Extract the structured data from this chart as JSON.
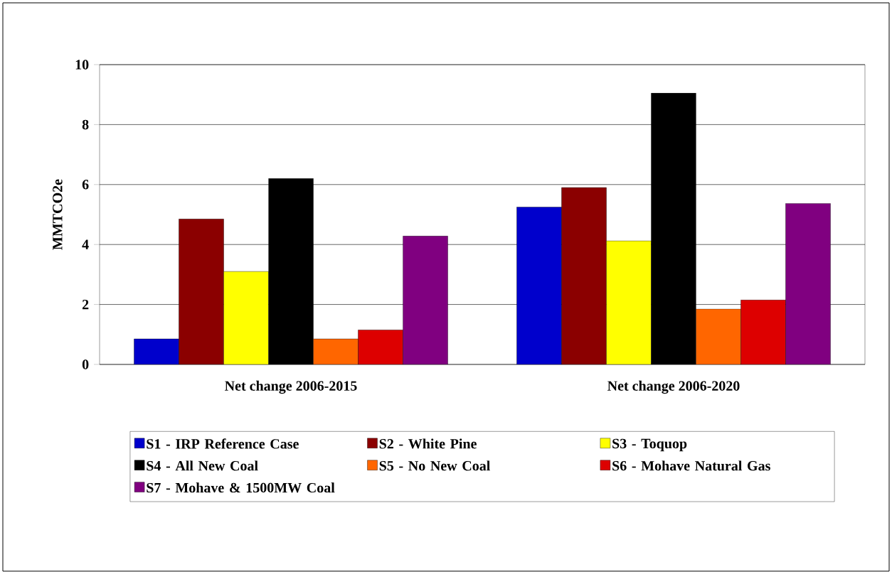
{
  "chart_data": {
    "type": "bar",
    "ylabel": "MMTCO2e",
    "categories": [
      "Net change 2006-2015",
      "Net change 2006-2020"
    ],
    "series": [
      {
        "name": "S1 - IRP Reference Case",
        "color": "#0000cc",
        "values": [
          0.85,
          5.25
        ]
      },
      {
        "name": "S2 - White Pine",
        "color": "#8b0000",
        "values": [
          4.85,
          5.9
        ]
      },
      {
        "name": "S3 - Toquop",
        "color": "#ffff00",
        "values": [
          3.1,
          4.12
        ]
      },
      {
        "name": "S4 - All New Coal",
        "color": "#000000",
        "values": [
          6.2,
          9.05
        ]
      },
      {
        "name": "S5 - No New Coal",
        "color": "#ff6600",
        "values": [
          0.85,
          1.85
        ]
      },
      {
        "name": "S6 - Mohave Natural Gas",
        "color": "#dd0000",
        "values": [
          1.15,
          2.15
        ]
      },
      {
        "name": "S7 - Mohave & 1500MW Coal",
        "color": "#800080",
        "values": [
          4.28,
          5.37
        ]
      }
    ],
    "ylim": [
      0,
      10
    ],
    "yticks": [
      0,
      2,
      4,
      6,
      8,
      10
    ],
    "grid": "y",
    "legend": "bottom"
  }
}
